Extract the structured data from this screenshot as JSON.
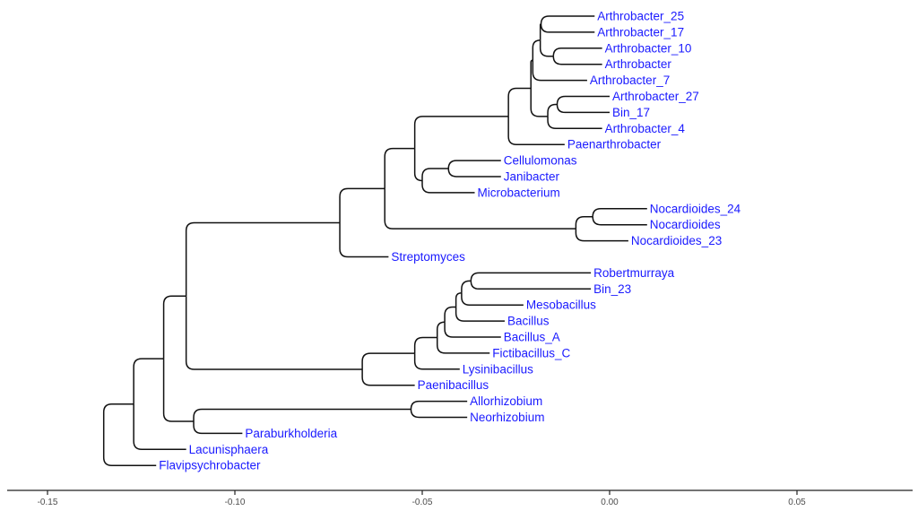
{
  "chart_data": {
    "type": "dendrogram",
    "label_color": "#1a1aff",
    "line_color": "#111111",
    "x_axis": {
      "range": [
        -0.16,
        0.08
      ],
      "ticks": [
        {
          "value": -0.15,
          "label": "-0.15"
        },
        {
          "value": -0.1,
          "label": "-0.10"
        },
        {
          "value": -0.05,
          "label": "-0.05"
        },
        {
          "value": 0.0,
          "label": "0.00"
        },
        {
          "value": 0.05,
          "label": "0.05"
        }
      ]
    },
    "leaves": [
      {
        "label": "Arthrobacter_25",
        "x": -0.004
      },
      {
        "label": "Arthrobacter_17",
        "x": -0.004
      },
      {
        "label": "Arthrobacter_10",
        "x": -0.002
      },
      {
        "label": "Arthrobacter",
        "x": -0.002
      },
      {
        "label": "Arthrobacter_7",
        "x": -0.006
      },
      {
        "label": "Arthrobacter_27",
        "x": 0.0
      },
      {
        "label": "Bin_17",
        "x": -0.0
      },
      {
        "label": "Arthrobacter_4",
        "x": -0.002
      },
      {
        "label": "Paenarthrobacter",
        "x": -0.012
      },
      {
        "label": "Cellulomonas",
        "x": -0.029
      },
      {
        "label": "Janibacter",
        "x": -0.029
      },
      {
        "label": "Microbacterium",
        "x": -0.036
      },
      {
        "label": "Nocardioides_24",
        "x": 0.01
      },
      {
        "label": "Nocardioides",
        "x": 0.01
      },
      {
        "label": "Nocardioides_23",
        "x": 0.005
      },
      {
        "label": "Streptomyces",
        "x": -0.059
      },
      {
        "label": "Robertmurraya",
        "x": -0.005
      },
      {
        "label": "Bin_23",
        "x": -0.005
      },
      {
        "label": "Mesobacillus",
        "x": -0.023
      },
      {
        "label": "Bacillus",
        "x": -0.028
      },
      {
        "label": "Bacillus_A",
        "x": -0.029
      },
      {
        "label": "Fictibacillus_C",
        "x": -0.032
      },
      {
        "label": "Lysinibacillus",
        "x": -0.04
      },
      {
        "label": "Paenibacillus",
        "x": -0.052
      },
      {
        "label": "Allorhizobium",
        "x": -0.038
      },
      {
        "label": "Neorhizobium",
        "x": -0.038
      },
      {
        "label": "Paraburkholderia",
        "x": -0.098
      },
      {
        "label": "Lacunisphaera",
        "x": -0.113
      },
      {
        "label": "Flavipsychrobacter",
        "x": -0.121
      }
    ],
    "internal_nodes": [
      {
        "id": "root",
        "x": -0.135,
        "children": [
          "n1",
          "L28"
        ]
      },
      {
        "id": "n1",
        "x": -0.127,
        "children": [
          "n2",
          "L27"
        ]
      },
      {
        "id": "n2",
        "x": -0.119,
        "children": [
          "n3",
          "n25"
        ]
      },
      {
        "id": "n3",
        "x": -0.113,
        "children": [
          "n4",
          "n17"
        ]
      },
      {
        "id": "n4",
        "x": -0.072,
        "children": [
          "n5",
          "L15"
        ]
      },
      {
        "id": "n5",
        "x": -0.06,
        "children": [
          "n6",
          "n15"
        ]
      },
      {
        "id": "n6",
        "x": -0.052,
        "children": [
          "n7",
          "n13"
        ]
      },
      {
        "id": "n7",
        "x": -0.027,
        "children": [
          "n8",
          "L8"
        ]
      },
      {
        "id": "n8",
        "x": -0.021,
        "children": [
          "n9",
          "n12"
        ]
      },
      {
        "id": "n9",
        "x": -0.0205,
        "children": [
          "n10",
          "L4"
        ]
      },
      {
        "id": "n10",
        "x": -0.0185,
        "children": [
          "n11",
          "n11b"
        ]
      },
      {
        "id": "n11",
        "x": -0.0183,
        "children": [
          "L0",
          "L1"
        ]
      },
      {
        "id": "n11b",
        "x": -0.015,
        "children": [
          "L2",
          "L3"
        ]
      },
      {
        "id": "n12",
        "x": -0.0165,
        "children": [
          "n12b",
          "L7"
        ]
      },
      {
        "id": "n12b",
        "x": -0.014,
        "children": [
          "L5",
          "L6"
        ]
      },
      {
        "id": "n13",
        "x": -0.05,
        "children": [
          "n14",
          "L11"
        ]
      },
      {
        "id": "n14",
        "x": -0.043,
        "children": [
          "L9",
          "L10"
        ]
      },
      {
        "id": "n15",
        "x": -0.009,
        "children": [
          "n16",
          "L14"
        ]
      },
      {
        "id": "n16",
        "x": -0.0045,
        "children": [
          "L12",
          "L13"
        ]
      },
      {
        "id": "n17",
        "x": -0.066,
        "children": [
          "n18",
          "L23"
        ]
      },
      {
        "id": "n18",
        "x": -0.052,
        "children": [
          "n19",
          "L22"
        ]
      },
      {
        "id": "n19",
        "x": -0.046,
        "children": [
          "n20",
          "L21"
        ]
      },
      {
        "id": "n20",
        "x": -0.044,
        "children": [
          "n21",
          "L20"
        ]
      },
      {
        "id": "n21",
        "x": -0.041,
        "children": [
          "n22",
          "L19"
        ]
      },
      {
        "id": "n22",
        "x": -0.0395,
        "children": [
          "n23",
          "L18"
        ]
      },
      {
        "id": "n23",
        "x": -0.037,
        "children": [
          "L16",
          "L17"
        ]
      },
      {
        "id": "n25",
        "x": -0.111,
        "children": [
          "n26",
          "L26"
        ]
      },
      {
        "id": "n26",
        "x": -0.053,
        "children": [
          "L24",
          "L25"
        ]
      }
    ]
  }
}
